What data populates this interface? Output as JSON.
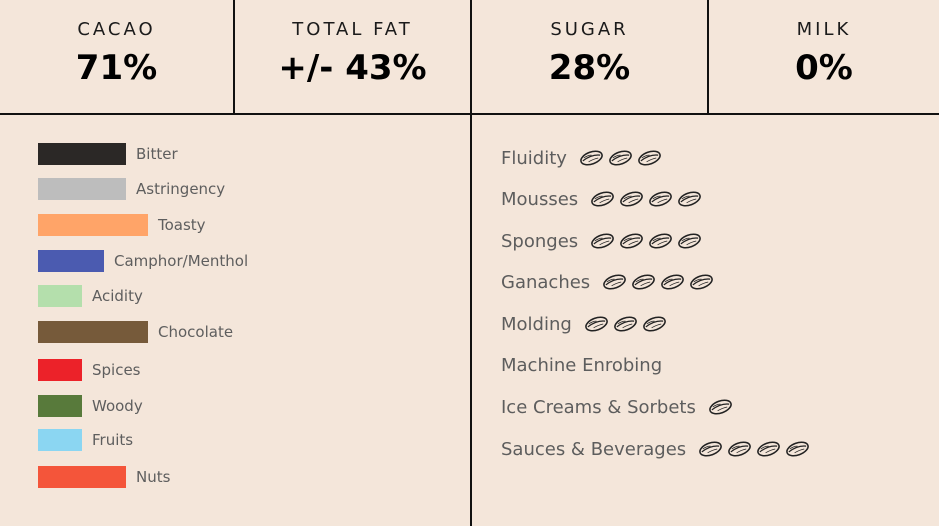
{
  "stats": [
    {
      "label": "CACAO",
      "value": "71%"
    },
    {
      "label": "TOTAL FAT",
      "value": "+/- 43%"
    },
    {
      "label": "SUGAR",
      "value": "28%"
    },
    {
      "label": "MILK",
      "value": "0%"
    }
  ],
  "chart_data": [
    {
      "type": "bar",
      "categories": [
        "Bitter",
        "Astringency",
        "Toasty",
        "Camphor/Menthol",
        "Acidity",
        "Chocolate",
        "Spices",
        "Woody",
        "Fruits",
        "Nuts"
      ],
      "values": [
        4,
        4,
        5,
        3,
        2,
        5,
        2,
        2,
        2,
        4
      ],
      "colors": [
        "#2b2826",
        "#bdbdbd",
        "#ffa468",
        "#4b5bb0",
        "#b4dfac",
        "#765a3a",
        "#ec2229",
        "#587a3b",
        "#8bd6f2",
        "#f4553a"
      ],
      "title": "",
      "xlabel": "",
      "ylabel": ""
    },
    {
      "type": "table",
      "categories": [
        "Fluidity",
        "Mousses",
        "Sponges",
        "Ganaches",
        "Molding",
        "Machine Enrobing",
        "Ice Creams & Sorbets",
        "Sauces & Beverages"
      ],
      "values": [
        3,
        4,
        4,
        4,
        3,
        0,
        1,
        4
      ],
      "icon": "cocoa-bean-icon"
    }
  ]
}
